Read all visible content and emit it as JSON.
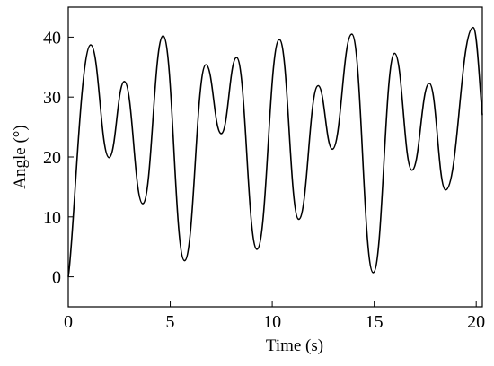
{
  "chart_data": {
    "type": "line",
    "title": "",
    "xlabel": "Time (s)",
    "ylabel": "Angle (°)",
    "xlim": [
      0,
      20.3
    ],
    "ylim": [
      -5,
      45
    ],
    "xticks": [
      0,
      5,
      10,
      15,
      20
    ],
    "yticks": [
      0,
      10,
      20,
      30,
      40
    ],
    "grid": false,
    "line_color": "#000000",
    "series": [
      {
        "keypoints": [
          [
            0,
            0
          ],
          [
            1.1,
            38.7
          ],
          [
            2.0,
            19.9
          ],
          [
            2.75,
            32.6
          ],
          [
            3.65,
            12.2
          ],
          [
            4.65,
            40.2
          ],
          [
            5.7,
            2.7
          ],
          [
            6.75,
            35.4
          ],
          [
            7.5,
            23.9
          ],
          [
            8.25,
            36.6
          ],
          [
            9.25,
            4.6
          ],
          [
            10.35,
            39.6
          ],
          [
            11.3,
            9.6
          ],
          [
            12.25,
            31.9
          ],
          [
            12.95,
            21.3
          ],
          [
            13.9,
            40.5
          ],
          [
            14.95,
            0.7
          ],
          [
            16.0,
            37.3
          ],
          [
            16.85,
            17.8
          ],
          [
            17.7,
            32.3
          ],
          [
            18.5,
            14.5
          ],
          [
            19.85,
            41.6
          ],
          [
            20.3,
            27.0
          ]
        ]
      }
    ]
  }
}
